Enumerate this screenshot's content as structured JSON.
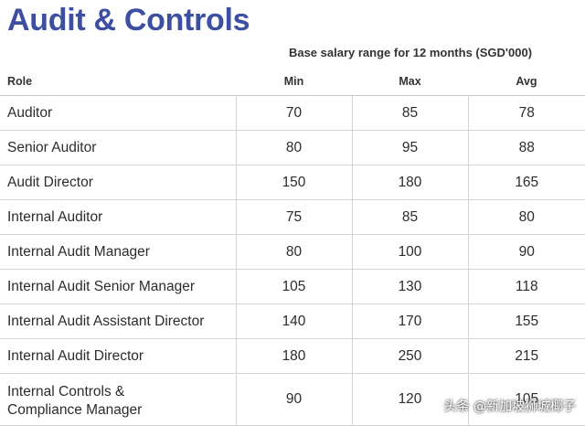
{
  "title": "Audit & Controls",
  "subtitle": "Base salary range for 12 months (SGD'000)",
  "columns": {
    "role": "Role",
    "min": "Min",
    "max": "Max",
    "avg": "Avg"
  },
  "rows": [
    {
      "role": "Auditor",
      "min": "70",
      "max": "85",
      "avg": "78"
    },
    {
      "role": "Senior Auditor",
      "min": "80",
      "max": "95",
      "avg": "88"
    },
    {
      "role": "Audit Director",
      "min": "150",
      "max": "180",
      "avg": "165"
    },
    {
      "role": "Internal Auditor",
      "min": "75",
      "max": "85",
      "avg": "80"
    },
    {
      "role": "Internal Audit Manager",
      "min": "80",
      "max": "100",
      "avg": "90"
    },
    {
      "role": "Internal Audit Senior Manager",
      "min": "105",
      "max": "130",
      "avg": "118"
    },
    {
      "role": "Internal Audit Assistant Director",
      "min": "140",
      "max": "170",
      "avg": "155"
    },
    {
      "role": "Internal Audit Director",
      "min": "180",
      "max": "250",
      "avg": "215"
    },
    {
      "role_line1": "Internal Controls &",
      "role_line2": "Compliance Manager",
      "min": "90",
      "max": "120",
      "avg": "105"
    }
  ],
  "watermark": "头条 @新加坡狮城椰子",
  "colors": {
    "title": "#3d4fa0",
    "text": "#2c2c2c",
    "rule": "#d4d4d4"
  }
}
